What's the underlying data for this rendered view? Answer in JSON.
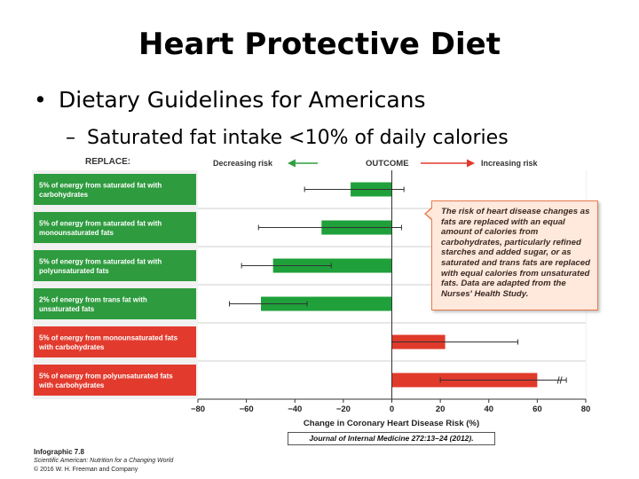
{
  "slide": {
    "title": "Heart Protective Diet",
    "bullet_1": "Dietary Guidelines for Americans",
    "bullet_2": "Saturated fat intake <10% of daily calories"
  },
  "figure": {
    "callout_text": "The risk of heart disease changes as fats are replaced with an equal amount of calories from carbohydrates, particularly refined starches and added sugar, or as saturated and trans fats are replaced with equal calories from unsaturated fats. Data are adapted from the Nurses' Health Study.",
    "citation": "Journal of Internal Medicine 272:13–24 (2012).",
    "credits": {
      "figure_label": "Infographic 7.8",
      "publication": "Scientific American: Nutrition for a Changing World",
      "copyright": "© 2016 W. H. Freeman and Company"
    }
  },
  "chart_data": {
    "type": "bar",
    "orientation": "horizontal",
    "title": "",
    "replace_label": "REPLACE:",
    "outcome_label": "OUTCOME",
    "decreasing_label": "Decreasing risk",
    "increasing_label": "Increasing risk",
    "xlabel": "Change in Coronary Heart Disease Risk (%)",
    "xlim": [
      -80,
      80
    ],
    "xticks": [
      "−80",
      "−60",
      "−40",
      "−20",
      "0",
      "20",
      "40",
      "60",
      "80"
    ],
    "xtick_values": [
      -80,
      -60,
      -40,
      -20,
      0,
      20,
      40,
      60,
      80
    ],
    "grid": false,
    "categories": [
      "5% of energy from saturated fat with carbohydrates",
      "5% of energy from saturated fat with monounsaturated fats",
      "5% of energy from saturated fat with polyunsaturated fats",
      "2% of energy from trans fat with unsaturated fats",
      "5% of energy from monounsaturated fats with carbohydrates",
      "5% of energy from polyunsaturated fats with carbohydrates"
    ],
    "values": [
      -17,
      -29,
      -49,
      -54,
      22,
      60
    ],
    "ci_low": [
      -36,
      -55,
      -62,
      -67,
      0,
      20
    ],
    "ci_high": [
      5,
      4,
      -25,
      -35,
      52,
      72
    ],
    "ci_break_after_high": [
      false,
      false,
      false,
      false,
      false,
      true
    ],
    "effect": [
      "decrease",
      "decrease",
      "decrease",
      "decrease",
      "increase",
      "increase"
    ],
    "colors": {
      "decrease": "#1fa03a",
      "increase": "#e03a2a",
      "label_green": "#2e9b3e",
      "label_red": "#e23b2e",
      "panel": "#f1f1f1",
      "header_green": "#2f9e3f",
      "header_red": "#e0392b"
    }
  }
}
